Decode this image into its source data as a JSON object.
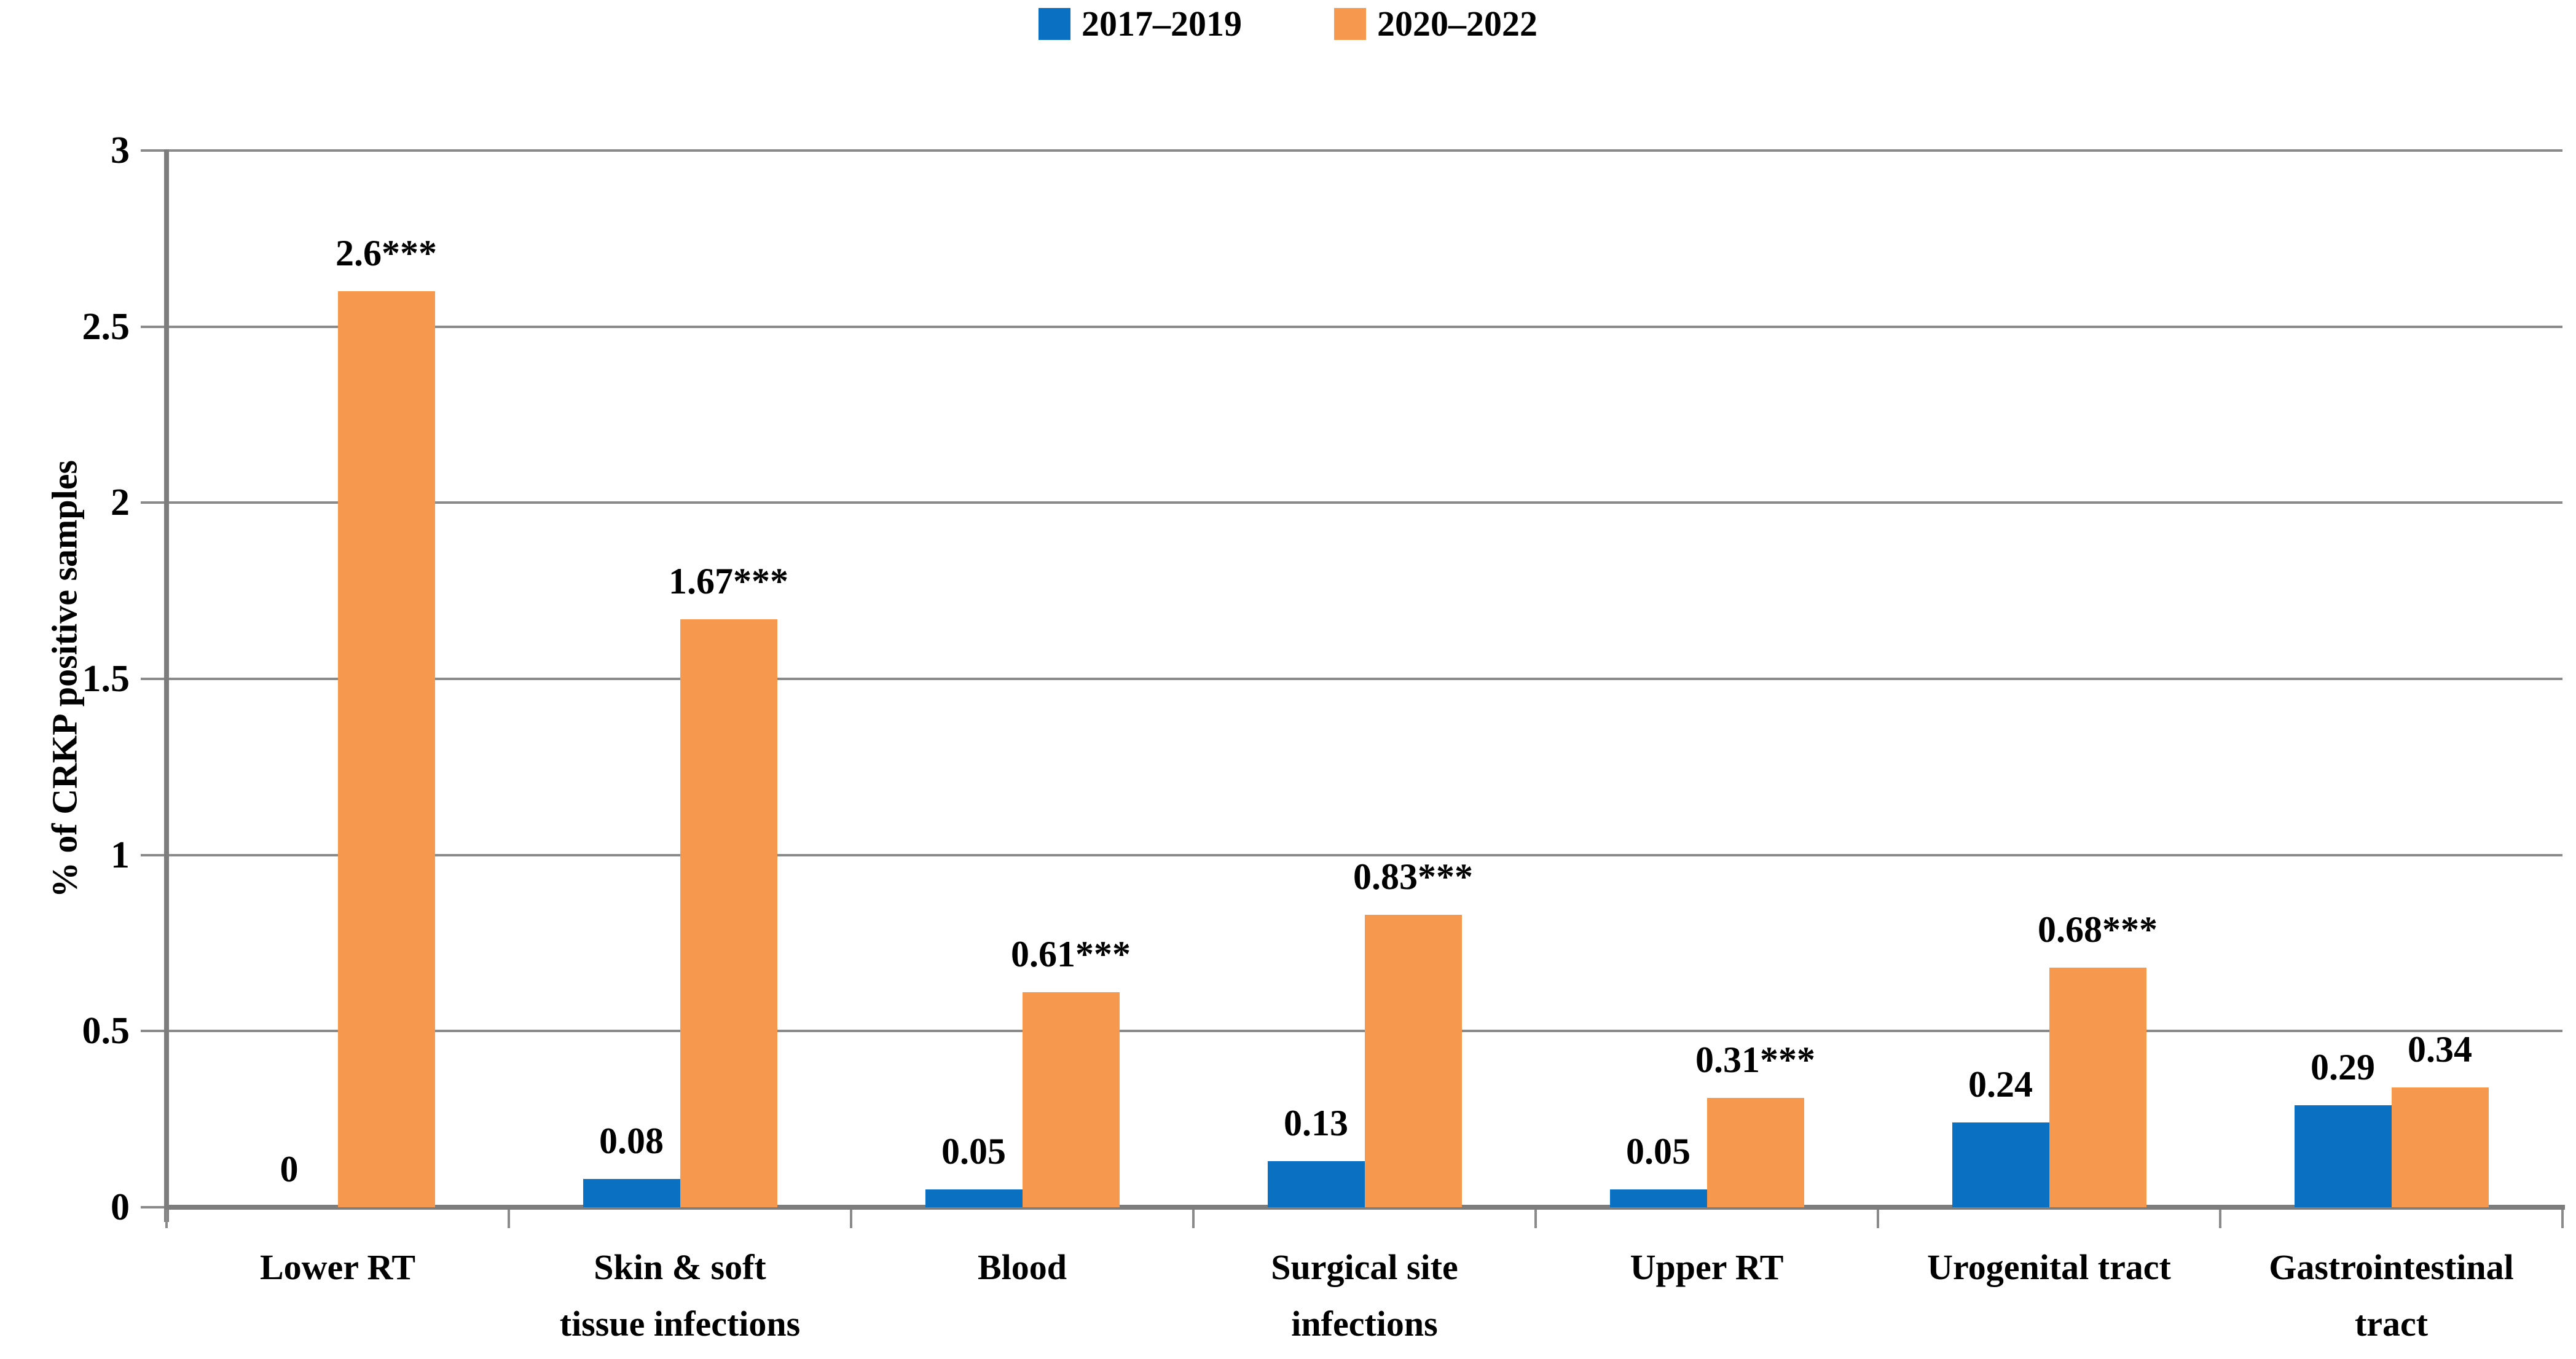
{
  "legend": {
    "items": [
      {
        "label": "2017–2019",
        "color": "#0a70c1"
      },
      {
        "label": "2020–2022",
        "color": "#f6984e"
      }
    ]
  },
  "chart_data": {
    "type": "bar",
    "title": "",
    "xlabel": "",
    "ylabel": "% of CRKP positive samples",
    "ylim": [
      0,
      3
    ],
    "yticks": [
      0,
      0.5,
      1,
      1.5,
      2,
      2.5,
      3
    ],
    "ytick_labels": [
      "0",
      "0.5",
      "1",
      "1.5",
      "2",
      "2.5",
      "3"
    ],
    "grid": true,
    "legend_position": "top-center",
    "categories": [
      "Lower RT",
      "Skin & soft\ntissue infections",
      "Blood",
      "Surgical site\ninfections",
      "Upper RT",
      "Urogenital tract",
      "Gastrointestinal\ntract"
    ],
    "series": [
      {
        "name": "2017–2019",
        "color": "#0a70c1",
        "values": [
          0,
          0.08,
          0.05,
          0.13,
          0.05,
          0.24,
          0.29
        ],
        "labels": [
          "0",
          "0.08",
          "0.05",
          "0.13",
          "0.05",
          "0.24",
          "0.29"
        ]
      },
      {
        "name": "2020–2022",
        "color": "#f6984e",
        "values": [
          2.6,
          1.67,
          0.61,
          0.83,
          0.31,
          0.68,
          0.34
        ],
        "labels": [
          "2.6***",
          "1.67***",
          "0.61***",
          "0.83***",
          "0.31***",
          "0.68***",
          "0.34"
        ]
      }
    ]
  },
  "colors": {
    "grid": "#8a8a8a",
    "axis": "#7d7d7d",
    "text": "#000000",
    "background": "#ffffff"
  }
}
